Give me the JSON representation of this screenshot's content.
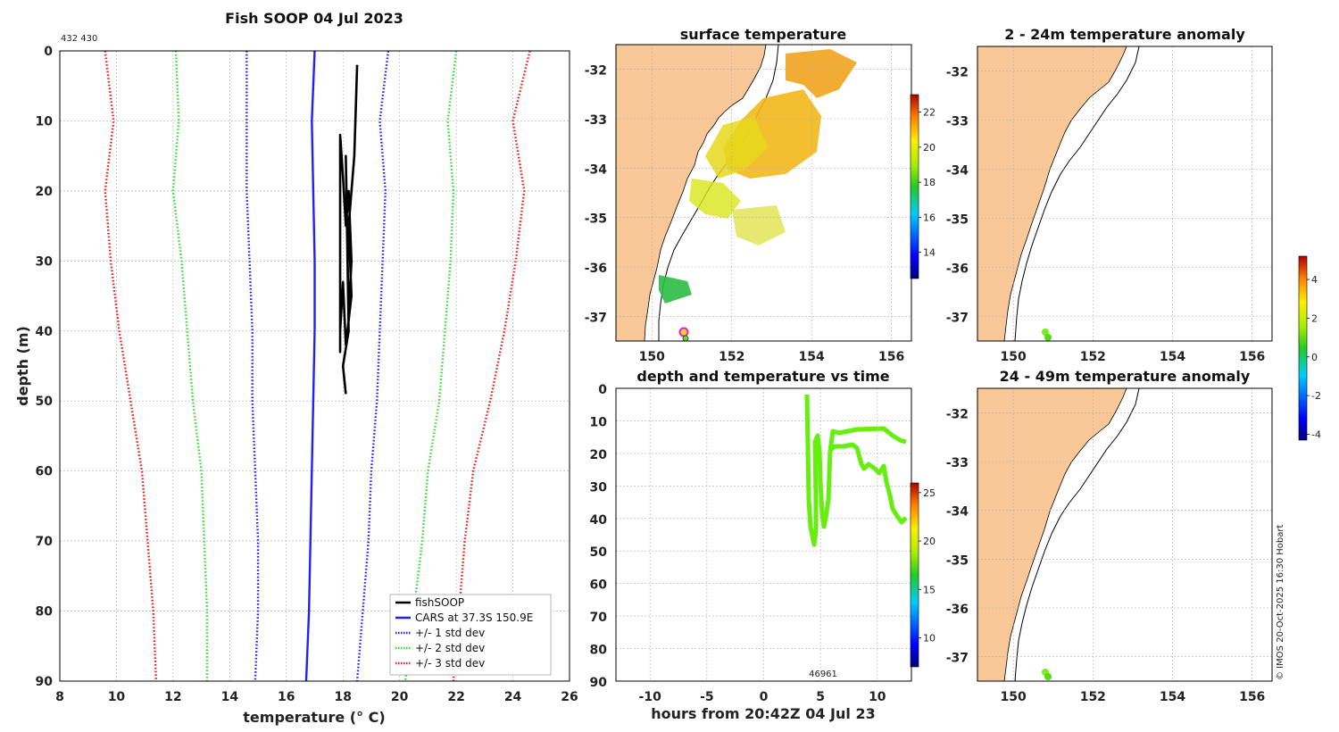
{
  "figure": {
    "title": "Fish SOOP 04 Jul 2023",
    "station_ids": "432 430",
    "footer": "© IMOS 20-Oct-2025 16:30 Hobart"
  },
  "colors": {
    "fish": "#000000",
    "cars": "#1f1fff",
    "sd1": "#1f1fff",
    "sd2": "#33dd33",
    "sd3": "#ee1a1a",
    "land": "#f9c898",
    "track": "#66ee11"
  },
  "chart_data": [
    {
      "id": "profile",
      "type": "line",
      "title": "Fish SOOP 04 Jul 2023",
      "xlabel": "temperature (° C)",
      "ylabel": "depth (m)",
      "xlim": [
        8,
        26
      ],
      "ylim": [
        0,
        90
      ],
      "y_reversed": true,
      "xticks": [
        8,
        10,
        12,
        14,
        16,
        18,
        20,
        22,
        24,
        26
      ],
      "yticks": [
        0,
        10,
        20,
        30,
        40,
        50,
        60,
        70,
        80,
        90
      ],
      "grid": true,
      "legend_position": "bottom-right",
      "series": [
        {
          "name": "fishSOOP",
          "style": "solid",
          "color": "#000000",
          "x": [
            18.5,
            18.4,
            18.2,
            18.3,
            18.1,
            18.0,
            17.9,
            17.9,
            17.9,
            18.0,
            18.1,
            18.2,
            18.3,
            18.2,
            18.1,
            18.2,
            18.0,
            18.1
          ],
          "y": [
            2,
            15,
            25,
            35,
            42,
            33,
            40,
            43,
            12,
            18,
            25,
            20,
            30,
            38,
            15,
            40,
            45,
            49
          ]
        },
        {
          "name": "CARS at 37.3S 150.9E",
          "style": "solid",
          "color": "#1f1fff",
          "x": [
            17.0,
            16.9,
            16.95,
            17.0,
            17.0,
            16.95,
            16.9,
            16.8,
            16.7
          ],
          "y": [
            0,
            10,
            20,
            30,
            40,
            50,
            60,
            80,
            90
          ]
        },
        {
          "name": "+/- 1 std dev",
          "style": "dotted",
          "color": "#1f1fff",
          "x": [
            14.6,
            14.6,
            14.6,
            14.7,
            14.8,
            14.8,
            14.9,
            15.0,
            15.0,
            14.9
          ],
          "y": [
            0,
            10,
            20,
            30,
            40,
            50,
            60,
            70,
            80,
            90
          ],
          "x2": [
            19.6,
            19.3,
            19.5,
            19.4,
            19.3,
            19.2,
            19.0,
            18.9,
            18.7,
            18.5
          ],
          "y2": [
            0,
            10,
            20,
            30,
            40,
            50,
            60,
            70,
            80,
            90
          ]
        },
        {
          "name": "+/- 2 std dev",
          "style": "dotted",
          "color": "#33dd33",
          "x": [
            12.1,
            12.2,
            12.0,
            12.3,
            12.5,
            12.7,
            13.0,
            13.1,
            13.2,
            13.2
          ],
          "y": [
            0,
            10,
            20,
            30,
            40,
            50,
            60,
            70,
            80,
            90
          ],
          "x2": [
            22.0,
            21.7,
            21.9,
            21.8,
            21.6,
            21.4,
            21.0,
            20.8,
            20.5,
            20.2
          ],
          "y2": [
            0,
            10,
            20,
            30,
            40,
            50,
            60,
            70,
            80,
            90
          ]
        },
        {
          "name": "+/- 3 std dev",
          "style": "dotted",
          "color": "#ee1a1a",
          "x": [
            9.6,
            9.9,
            9.6,
            9.8,
            10.1,
            10.5,
            10.9,
            11.1,
            11.3,
            11.4
          ],
          "y": [
            0,
            10,
            20,
            30,
            40,
            50,
            60,
            70,
            80,
            90
          ],
          "x2": [
            24.6,
            24.0,
            24.4,
            24.1,
            23.7,
            23.2,
            22.6,
            22.3,
            22.1,
            21.9
          ],
          "y2": [
            0,
            10,
            20,
            30,
            40,
            50,
            60,
            70,
            80,
            90
          ]
        }
      ]
    },
    {
      "id": "sst",
      "type": "heatmap",
      "title": "surface temperature",
      "xticks": [
        150,
        152,
        154,
        156
      ],
      "yticks": [
        -32,
        -33,
        -34,
        -35,
        -36,
        -37
      ],
      "xlim": [
        149.1,
        156.5
      ],
      "ylim": [
        -37.5,
        -31.5
      ],
      "colorbar": {
        "ticks": [
          14,
          16,
          18,
          20,
          22
        ],
        "range": [
          12.5,
          23
        ]
      }
    },
    {
      "id": "timeseries",
      "type": "scatter",
      "title": "depth and temperature vs time",
      "xlabel": "hours from 20:42Z 04 Jul 23",
      "xticks": [
        -10,
        -5,
        0,
        5,
        10
      ],
      "yticks": [
        0,
        10,
        20,
        30,
        40,
        50,
        60,
        70,
        80,
        90
      ],
      "xlim": [
        -13,
        13
      ],
      "ylim": [
        0,
        90
      ],
      "y_reversed": true,
      "annotation": "46961",
      "colorbar": {
        "ticks": [
          10,
          15,
          20,
          25
        ],
        "range": [
          7,
          26
        ]
      }
    },
    {
      "id": "anom_shallow",
      "type": "heatmap",
      "title": "2 - 24m temperature anomaly",
      "xticks": [
        150,
        152,
        154,
        156
      ],
      "yticks": [
        -32,
        -33,
        -34,
        -35,
        -36,
        -37
      ],
      "xlim": [
        149.1,
        156.5
      ],
      "ylim": [
        -37.5,
        -31.5
      ]
    },
    {
      "id": "anom_deep",
      "type": "heatmap",
      "title": "24 - 49m temperature anomaly",
      "xticks": [
        150,
        152,
        154,
        156
      ],
      "yticks": [
        -32,
        -33,
        -34,
        -35,
        -36,
        -37
      ],
      "xlim": [
        149.1,
        156.5
      ],
      "ylim": [
        -37.5,
        -31.5
      ],
      "colorbar": {
        "ticks": [
          -4,
          -2,
          0,
          2,
          4
        ],
        "range": [
          -4.3,
          5.2
        ]
      }
    }
  ]
}
